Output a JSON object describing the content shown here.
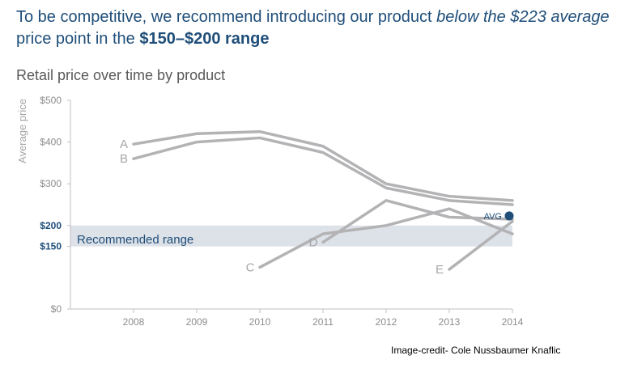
{
  "headline": {
    "part1": "To be competitive, we recommend introducing our product ",
    "part2_italic": "below the $223 average",
    "part3": " price point in the ",
    "part4_bold": "$150–$200 range"
  },
  "credit": "Image-credit- Cole Nussbaumer Knaflic",
  "colors": {
    "headline": "#1f4e79",
    "line": "#b3b3b5",
    "band": "#dde1e8",
    "accent": "#1f4e79",
    "axis_text": "#8c8c8c"
  },
  "chart_data": {
    "type": "line",
    "title": "Retail price over time by product",
    "ylabel": "Average price",
    "xlabel": "",
    "x": [
      "2008",
      "2009",
      "2010",
      "2011",
      "2012",
      "2013",
      "2014"
    ],
    "ylim": [
      0,
      500
    ],
    "yticks": [
      {
        "value": 0,
        "label": "$0",
        "highlight": false
      },
      {
        "value": 150,
        "label": "$150",
        "highlight": true
      },
      {
        "value": 200,
        "label": "$200",
        "highlight": true
      },
      {
        "value": 300,
        "label": "$300",
        "highlight": false
      },
      {
        "value": 400,
        "label": "$400",
        "highlight": false
      },
      {
        "value": 500,
        "label": "$500",
        "highlight": false
      }
    ],
    "grid": false,
    "band": {
      "from": 150,
      "to": 200,
      "label": "Recommended range"
    },
    "series": [
      {
        "name": "A",
        "values": [
          395,
          420,
          425,
          390,
          300,
          270,
          260
        ]
      },
      {
        "name": "B",
        "values": [
          360,
          400,
          410,
          375,
          290,
          260,
          250
        ]
      },
      {
        "name": "C",
        "values": [
          null,
          null,
          100,
          180,
          200,
          240,
          180
        ]
      },
      {
        "name": "D",
        "values": [
          null,
          null,
          null,
          160,
          260,
          220,
          215
        ]
      },
      {
        "name": "E",
        "values": [
          null,
          null,
          null,
          null,
          null,
          95,
          210
        ]
      }
    ],
    "avg": {
      "label": "AVG",
      "value": 223,
      "x": "2014"
    }
  }
}
